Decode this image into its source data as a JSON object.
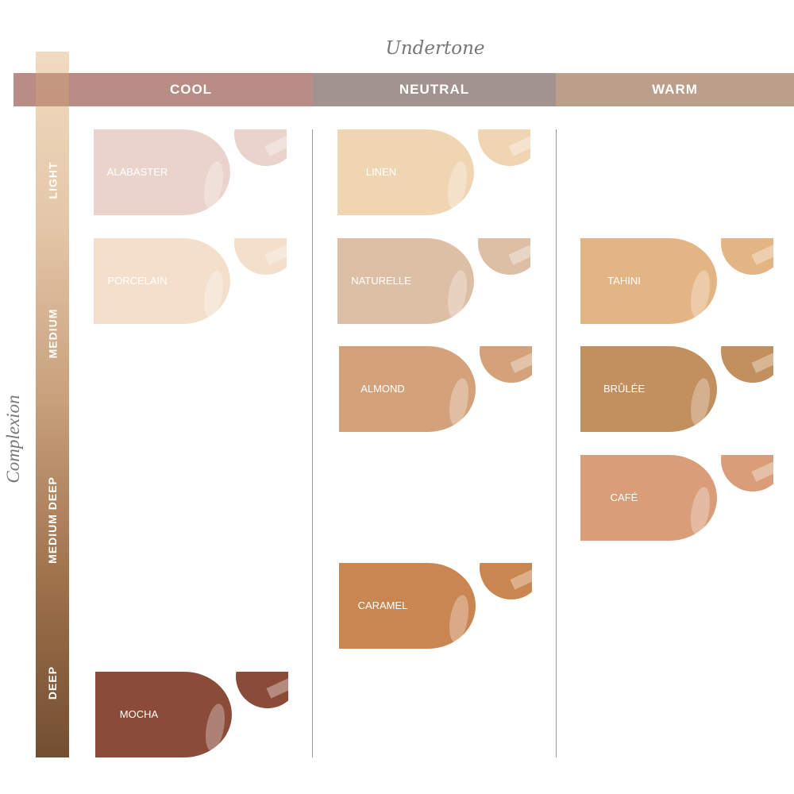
{
  "axes": {
    "undertone": "Undertone",
    "complexion": "Complexion"
  },
  "undertones": [
    {
      "label": "COOL",
      "color": "#b98c85"
    },
    {
      "label": "NEUTRAL",
      "color": "#a39390"
    },
    {
      "label": "WARM",
      "color": "#bc9f8a"
    }
  ],
  "complexions": [
    "LIGHT",
    "MEDIUM",
    "MEDIUM DEEP",
    "DEEP"
  ],
  "shades": [
    {
      "name": "ALABASTER",
      "undertone": "COOL",
      "color": "#ead3cb"
    },
    {
      "name": "PORCELAIN",
      "undertone": "COOL",
      "color": "#f3dfcb"
    },
    {
      "name": "MOCHA",
      "undertone": "COOL",
      "color": "#8a4c38"
    },
    {
      "name": "LINEN",
      "undertone": "NEUTRAL",
      "color": "#f0d5b2"
    },
    {
      "name": "NATURELLE",
      "undertone": "NEUTRAL",
      "color": "#ddbfa5"
    },
    {
      "name": "ALMOND",
      "undertone": "NEUTRAL",
      "color": "#d3a27a"
    },
    {
      "name": "CARAMEL",
      "undertone": "NEUTRAL",
      "color": "#c98651"
    },
    {
      "name": "TAHINI",
      "undertone": "WARM",
      "color": "#e4b584"
    },
    {
      "name": "BRÛLÉE",
      "undertone": "WARM",
      "color": "#c28f5e"
    },
    {
      "name": "CAFÉ",
      "undertone": "WARM",
      "color": "#d99d7a"
    }
  ]
}
